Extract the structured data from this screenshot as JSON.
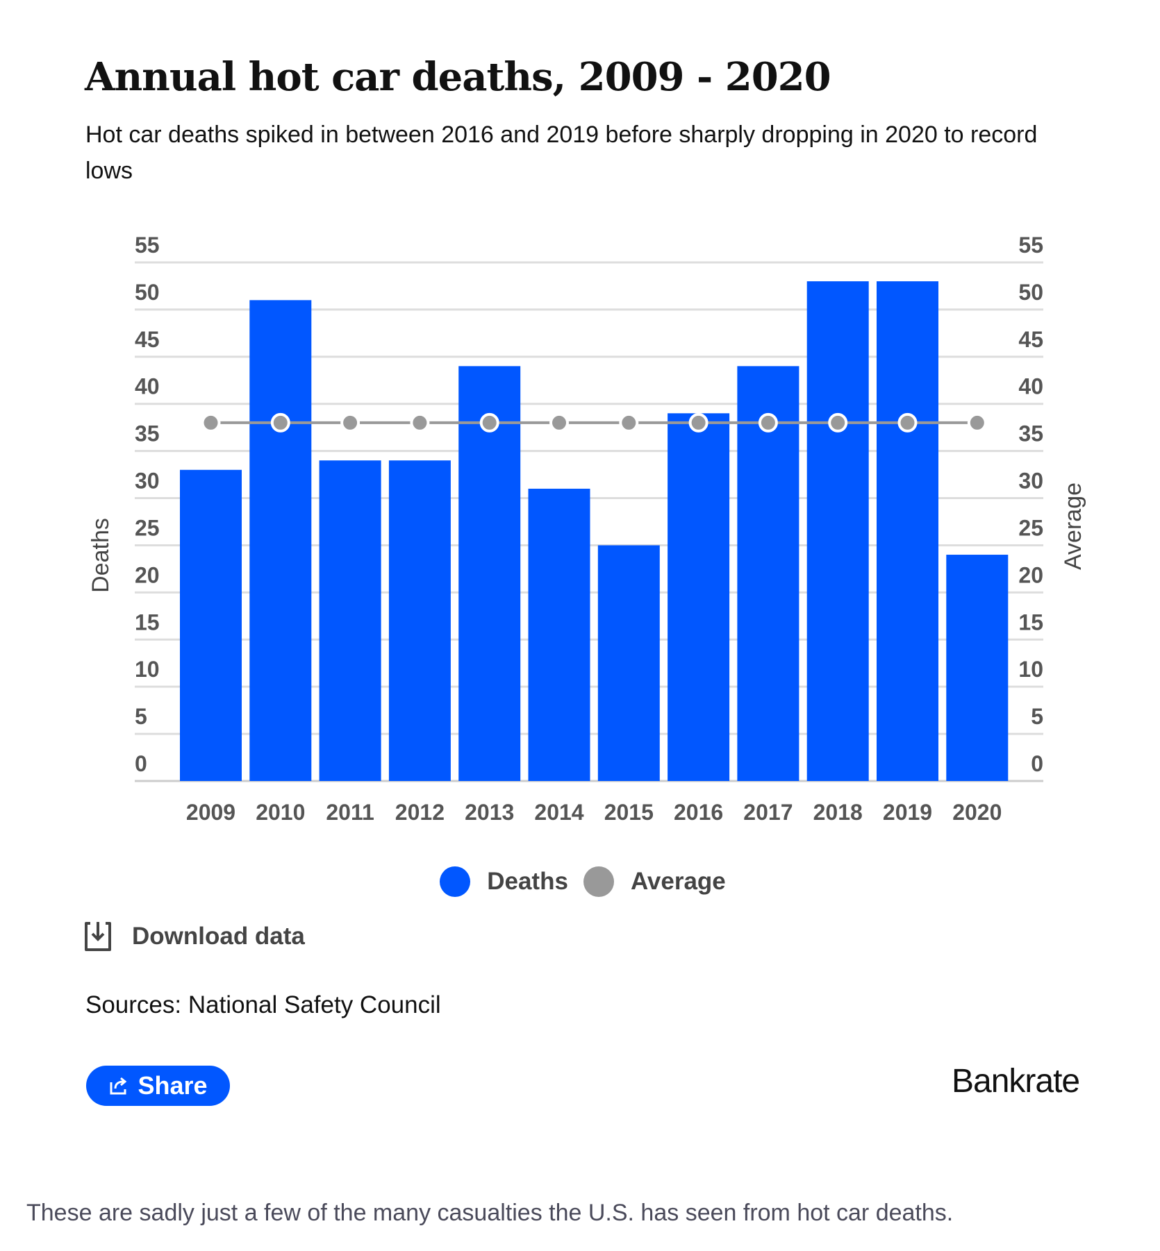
{
  "header": {
    "title": "Annual hot car deaths, 2009 - 2020",
    "subtitle": "Hot car deaths spiked in between 2016 and 2019 before sharply dropping in 2020 to record lows"
  },
  "chart_data": {
    "type": "bar",
    "categories": [
      "2009",
      "2010",
      "2011",
      "2012",
      "2013",
      "2014",
      "2015",
      "2016",
      "2017",
      "2018",
      "2019",
      "2020"
    ],
    "series": [
      {
        "name": "Deaths",
        "type": "bar",
        "color": "#0157ff",
        "values": [
          33,
          51,
          34,
          34,
          44,
          31,
          25,
          39,
          44,
          53,
          53,
          24
        ]
      },
      {
        "name": "Average",
        "type": "line",
        "color": "#999999",
        "values": [
          38,
          38,
          38,
          38,
          38,
          38,
          38,
          38,
          38,
          38,
          38,
          38
        ]
      }
    ],
    "ylabel": "Deaths",
    "y2label": "Average",
    "ylim": [
      0,
      55
    ],
    "y_ticks": [
      "0",
      "5",
      "10",
      "15",
      "20",
      "25",
      "30",
      "35",
      "40",
      "45",
      "50",
      "55"
    ],
    "grid": true,
    "legend": "bottom"
  },
  "actions": {
    "download_label": "Download data",
    "share_label": "Share"
  },
  "sources": "Sources: National Safety Council",
  "logo": "Bankrate",
  "footer_text": "These are sadly just a few of the many casualties the U.S. has seen from hot car deaths."
}
